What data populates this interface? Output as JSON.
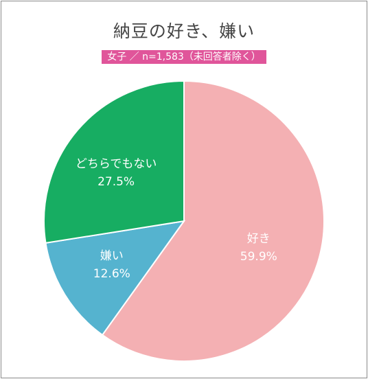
{
  "title": "納豆の好き、嫌い",
  "subtitle": "女子 ／ n=1,583（未回答者除く）",
  "chart_data": {
    "type": "pie",
    "title": "納豆の好き、嫌い",
    "subtitle": "女子 ／ n=1,583（未回答者除く）",
    "slices": [
      {
        "label": "好き",
        "value": 59.9,
        "value_label": "59.9%",
        "color": "#f4b0b3"
      },
      {
        "label": "嫌い",
        "value": 12.6,
        "value_label": "12.6%",
        "color": "#55b3cf"
      },
      {
        "label": "どちらでもない",
        "value": 27.5,
        "value_label": "27.5%",
        "color": "#17ad62"
      }
    ],
    "start": "12 o'clock",
    "direction": "clockwise",
    "legend": "none (labels inside slices)"
  }
}
